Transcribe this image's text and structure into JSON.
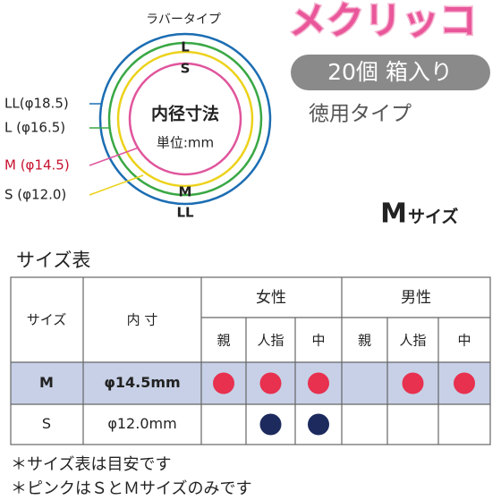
{
  "diagram": {
    "caption": "ラバータイプ",
    "ring_labels": [
      "L",
      "S",
      "M",
      "LL"
    ],
    "center_title": "内径寸法",
    "center_unit": "単位:mm",
    "size_labels": [
      "LL(φ18.5)",
      "L (φ16.5)",
      "M (φ14.5)",
      "S (φ12.0)"
    ]
  },
  "header": {
    "logo": "メクリッコ",
    "count": "20個 箱入り",
    "type": "徳用タイプ",
    "size_main": "M",
    "size_suffix": "サイズ"
  },
  "table": {
    "title": "サイズ表",
    "columns": [
      "サイズ",
      "内 寸"
    ],
    "groups": [
      "女性",
      "男性"
    ],
    "fingers": [
      "親",
      "人指",
      "中",
      "親",
      "人指",
      "中"
    ],
    "rows": [
      {
        "size": "M",
        "inner": "φ14.5mm",
        "dots": [
          "#e8304f",
          "#e8304f",
          "#e8304f",
          null,
          "#e8304f",
          "#e8304f"
        ]
      },
      {
        "size": "S",
        "inner": "φ12.0mm",
        "dots": [
          null,
          "#1c2a5e",
          "#1c2a5e",
          null,
          null,
          null
        ]
      }
    ]
  },
  "notes": [
    "＊サイズ表は目安です",
    "＊ピンクはＳとＭサイズのみです"
  ]
}
